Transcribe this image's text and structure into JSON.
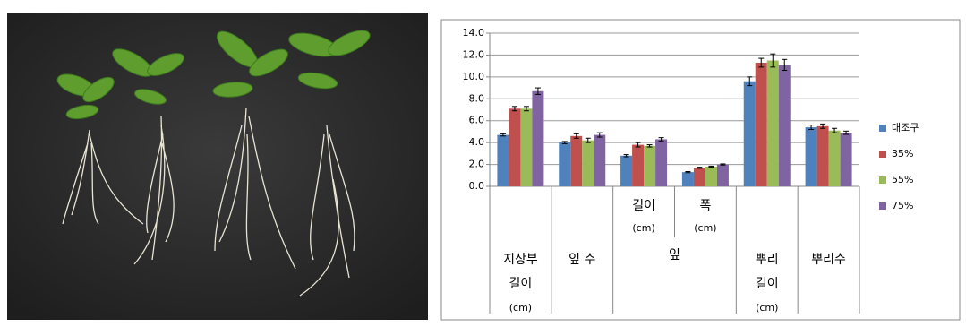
{
  "chart_data": {
    "type": "bar",
    "categories": [
      [
        "지상부",
        "길이",
        "(cm)"
      ],
      [
        "잎 수"
      ],
      [
        "길이",
        "(cm)"
      ],
      [
        "폭",
        "(cm)"
      ],
      [
        "뿌리",
        "길이",
        "(cm)"
      ],
      [
        "뿌리수"
      ]
    ],
    "category_group": {
      "label": "잎",
      "first": 2,
      "last": 3
    },
    "series": [
      {
        "name": "대조구",
        "color": "#4f81bd",
        "values": [
          4.7,
          4.0,
          2.8,
          1.3,
          9.6,
          5.4
        ],
        "errors": [
          0.1,
          0.1,
          0.1,
          0.05,
          0.4,
          0.2
        ]
      },
      {
        "name": "35%",
        "color": "#c0504d",
        "values": [
          7.1,
          4.6,
          3.8,
          1.7,
          11.3,
          5.5
        ],
        "errors": [
          0.2,
          0.2,
          0.2,
          0.05,
          0.4,
          0.2
        ]
      },
      {
        "name": "55%",
        "color": "#9bbb59",
        "values": [
          7.1,
          4.2,
          3.7,
          1.8,
          11.5,
          5.1
        ],
        "errors": [
          0.2,
          0.2,
          0.1,
          0.05,
          0.6,
          0.2
        ]
      },
      {
        "name": "75%",
        "color": "#8064a2",
        "values": [
          8.7,
          4.7,
          4.3,
          2.0,
          11.1,
          4.9
        ],
        "errors": [
          0.3,
          0.2,
          0.15,
          0.05,
          0.5,
          0.15
        ]
      }
    ],
    "ylim": [
      0,
      14
    ],
    "yticks": [
      {
        "value": 0,
        "label": "0.0"
      },
      {
        "value": 2,
        "label": "2.0"
      },
      {
        "value": 4,
        "label": "4.0"
      },
      {
        "value": 6,
        "label": "6.0"
      },
      {
        "value": 8,
        "label": "8.0"
      },
      {
        "value": 10,
        "label": "10.0"
      },
      {
        "value": 12,
        "label": "12.0"
      },
      {
        "value": 14,
        "label": "14.0"
      }
    ],
    "grid": true
  }
}
